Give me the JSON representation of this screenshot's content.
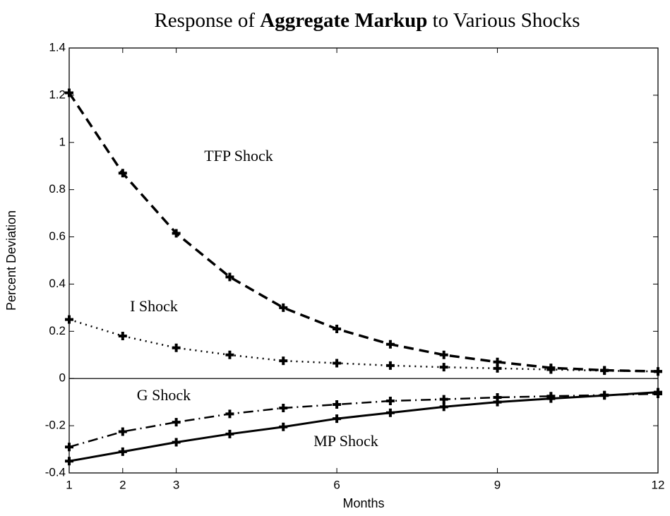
{
  "chart_data": {
    "type": "line",
    "title": [
      "Response of",
      "Aggregate Markup",
      "to Various Shocks"
    ],
    "xlabel": "Months",
    "ylabel": "Percent Deviation",
    "x": [
      1,
      2,
      3,
      4,
      5,
      6,
      7,
      8,
      9,
      10,
      11,
      12
    ],
    "xlim": [
      1,
      12
    ],
    "xticks": [
      1,
      2,
      3,
      6,
      9,
      12
    ],
    "ylim": [
      -0.4,
      1.4
    ],
    "yticks": [
      -0.4,
      -0.2,
      0,
      0.2,
      0.4,
      0.6,
      0.8,
      1,
      1.2,
      1.4
    ],
    "series": [
      {
        "name": "TFP Shock",
        "color": "#000000",
        "style": "dashed",
        "values": [
          1.21,
          0.87,
          0.615,
          0.43,
          0.3,
          0.21,
          0.145,
          0.1,
          0.07,
          0.045,
          0.035,
          0.03
        ]
      },
      {
        "name": "I Shock",
        "color": "#000000",
        "style": "dotted",
        "values": [
          0.25,
          0.18,
          0.13,
          0.1,
          0.075,
          0.065,
          0.055,
          0.048,
          0.043,
          0.038,
          0.033,
          0.03
        ]
      },
      {
        "name": "G Shock",
        "color": "#000000",
        "style": "dashdot",
        "values": [
          -0.29,
          -0.225,
          -0.185,
          -0.15,
          -0.125,
          -0.11,
          -0.095,
          -0.088,
          -0.08,
          -0.075,
          -0.07,
          -0.065
        ]
      },
      {
        "name": "MP Shock",
        "color": "#000000",
        "style": "solid",
        "values": [
          -0.35,
          -0.31,
          -0.27,
          -0.235,
          -0.205,
          -0.17,
          -0.145,
          -0.12,
          -0.1,
          -0.085,
          -0.072,
          -0.058
        ]
      }
    ]
  }
}
